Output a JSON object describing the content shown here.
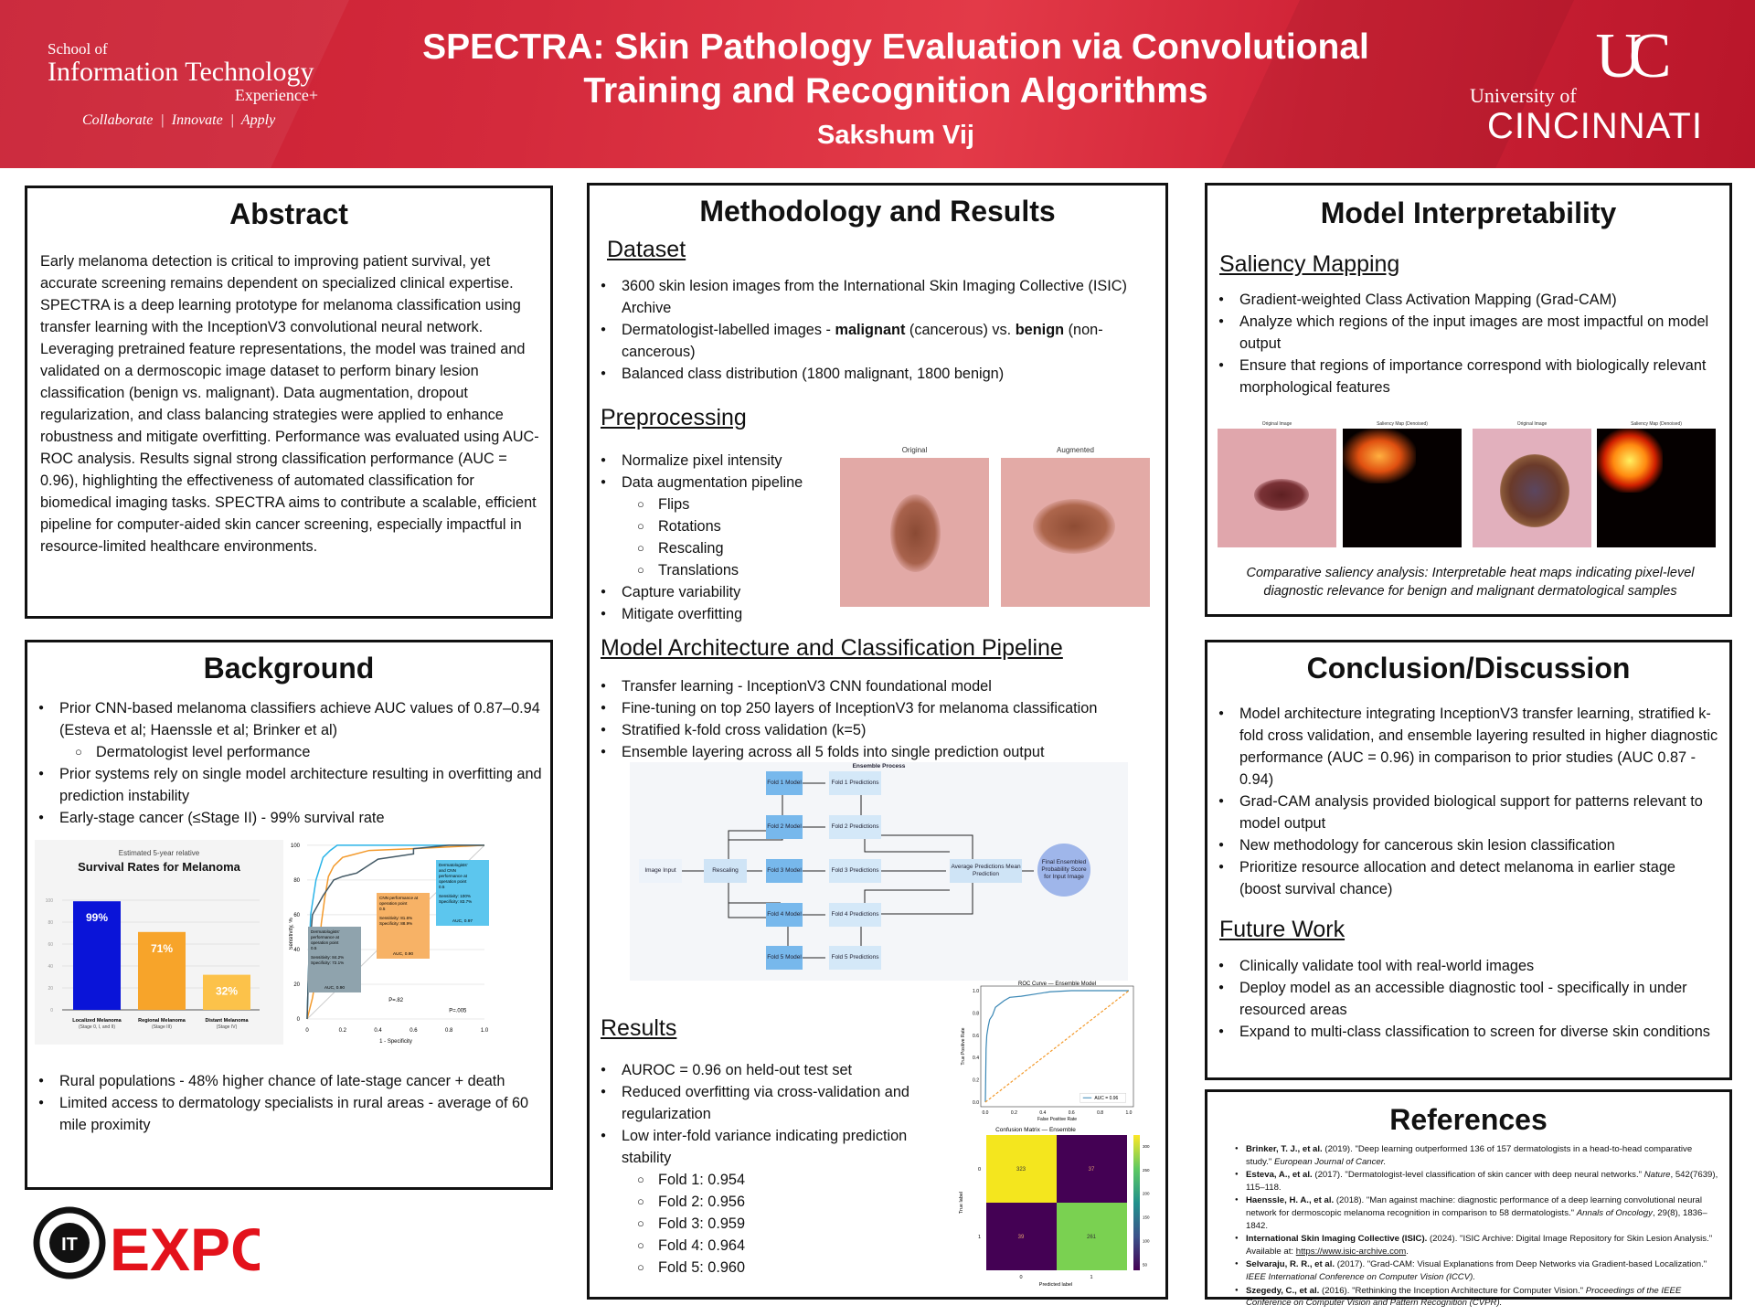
{
  "header": {
    "school_line1": "School of",
    "school_line2": "Information Technology",
    "school_line3": "Experience+",
    "tagline": [
      "Collaborate",
      "Innovate",
      "Apply"
    ],
    "title": "SPECTRA: Skin Pathology Evaluation via Convolutional Training and Recognition Algorithms",
    "author": "Sakshum Vij",
    "university_line1": "University of",
    "university_line2": "CINCINNATI",
    "brand_color": "#c81e32"
  },
  "abstract": {
    "heading": "Abstract",
    "text": "Early melanoma detection is critical to improving patient survival, yet accurate screening remains dependent on specialized clinical expertise. SPECTRA is a deep learning prototype for melanoma classification using transfer learning with the InceptionV3 convolutional neural network. Leveraging pretrained feature representations, the model was trained and validated on a dermoscopic image dataset to perform binary lesion classification (benign vs. malignant). Data augmentation, dropout regularization, and class balancing strategies were applied to enhance robustness and mitigate overfitting. Performance was evaluated using AUC-ROC analysis. Results signal strong classification performance (AUC = 0.96), highlighting the effectiveness of automated classification for biomedical imaging tasks. SPECTRA aims to contribute a scalable, efficient pipeline for computer-aided skin cancer screening, especially impactful in resource-limited healthcare environments."
  },
  "background": {
    "heading": "Background",
    "items": [
      {
        "text": "Prior CNN-based melanoma classifiers achieve AUC values of 0.87–0.94 (Esteva et al; Haenssle et al; Brinker et al)"
      },
      {
        "text": "Dermatologist level performance",
        "level": 2
      },
      {
        "text": "Prior systems rely on single model architecture resulting in overfitting and prediction instability"
      },
      {
        "text": "Early-stage cancer (≤Stage II) - 99% survival rate"
      }
    ],
    "items2": [
      {
        "text": "Rural populations - 48% higher chance of late-stage cancer + death"
      },
      {
        "text": "Limited access to dermatology specialists in rural areas - average of 60 mile proximity"
      }
    ],
    "survival_chart": {
      "subtitle": "Estimated 5-year relative",
      "title": "Survival Rates for Melanoma",
      "yticks": [
        "0",
        "20",
        "40",
        "60",
        "80",
        "100"
      ],
      "bars": [
        {
          "label": "Localized Melanoma",
          "sub": "(Stage 0, I, and II)",
          "value": 99,
          "value_label": "99%",
          "color": "#0a14d8"
        },
        {
          "label": "Regional Melanoma",
          "sub": "(Stage III)",
          "value": 71,
          "value_label": "71%",
          "color": "#f7a42a"
        },
        {
          "label": "Distant Melanoma",
          "sub": "(Stage IV)",
          "value": 32,
          "value_label": "32%",
          "color": "#fcc24a"
        }
      ]
    },
    "roc_chart": {
      "ylabel": "Sensitivity, %",
      "xlabel": "1 - Specificity",
      "xticks": [
        "0",
        "0.2",
        "0.4",
        "0.6",
        "0.8",
        "1.0"
      ],
      "yticks": [
        "0",
        "20",
        "40",
        "60",
        "80",
        "100"
      ],
      "series": [
        {
          "color": "#2ab4e8",
          "points": [
            [
              0,
              0
            ],
            [
              0.01,
              35
            ],
            [
              0.02,
              60
            ],
            [
              0.05,
              80
            ],
            [
              0.09,
              93
            ],
            [
              0.13,
              97
            ],
            [
              0.17,
              100
            ],
            [
              1,
              100
            ]
          ]
        },
        {
          "color": "#f39a2c",
          "points": [
            [
              0,
              0
            ],
            [
              0.03,
              12
            ],
            [
              0.06,
              30
            ],
            [
              0.08,
              55
            ],
            [
              0.1,
              70
            ],
            [
              0.12,
              82
            ],
            [
              0.15,
              88
            ],
            [
              0.2,
              93
            ],
            [
              0.35,
              97
            ],
            [
              0.6,
              98
            ],
            [
              1,
              100
            ]
          ]
        },
        {
          "color": "#445a66",
          "points": [
            [
              0,
              0
            ],
            [
              0.01,
              35
            ],
            [
              0.03,
              60
            ],
            [
              0.09,
              71
            ],
            [
              0.15,
              80
            ],
            [
              0.2,
              82
            ],
            [
              0.28,
              84
            ],
            [
              0.4,
              92
            ],
            [
              0.6,
              95
            ],
            [
              0.6,
              98
            ],
            [
              0.8,
              100
            ],
            [
              1,
              100
            ]
          ]
        }
      ],
      "boxes": [
        {
          "title": "Dermatologists' performance at operation point 0.5",
          "sens": "Sensitivity: 84.2%",
          "spec": "Specificity: 72.1%",
          "auc": "AUC, 0.90",
          "color": "#8fa3ad"
        },
        {
          "title": "CNN performance at operation point 0.5",
          "sens": "Sensitivity: 81.6%",
          "spec": "Specificity: 88.9%",
          "auc": "AUC, 0.90",
          "color": "#f7b266"
        },
        {
          "title": "Dermatologists' and CNN performance at operation point 0.5",
          "sens": "Sensitivity: 100%",
          "spec": "Specificity: 83.7%",
          "auc": "AUC, 0.97",
          "color": "#5cc6ee"
        }
      ],
      "p1": "P=.82",
      "p2": "P=.005"
    }
  },
  "methods": {
    "heading": "Methodology and Results",
    "dataset": {
      "heading": "Dataset",
      "items": [
        {
          "text": "3600 skin lesion images from the International Skin Imaging Collective (ISIC) Archive"
        },
        {
          "parts": [
            {
              "t": "Dermatologist-labelled images - "
            },
            {
              "t": "malignant",
              "b": true
            },
            {
              "t": " (cancerous) vs. "
            },
            {
              "t": "benign",
              "b": true
            },
            {
              "t": " (non-cancerous)"
            }
          ]
        },
        {
          "text": "Balanced class distribution (1800 malignant, 1800 benign)"
        }
      ]
    },
    "preprocessing": {
      "heading": "Preprocessing",
      "items": [
        {
          "text": "Normalize pixel intensity"
        },
        {
          "text": "Data augmentation pipeline"
        },
        {
          "text": "Flips",
          "level": 2
        },
        {
          "text": "Rotations",
          "level": 2
        },
        {
          "text": "Rescaling",
          "level": 2
        },
        {
          "text": "Translations",
          "level": 2
        },
        {
          "text": "Capture variability"
        },
        {
          "text": "Mitigate overfitting"
        }
      ],
      "image_labels": [
        "Original",
        "Augmented"
      ]
    },
    "architecture": {
      "heading": "Model Architecture and Classification Pipeline",
      "items": [
        {
          "text": "Transfer learning - InceptionV3 CNN foundational model"
        },
        {
          "text": "Fine-tuning on top 250 layers of InceptionV3 for melanoma classification"
        },
        {
          "text": "Stratified k-fold cross validation (k=5)"
        },
        {
          "text": "Ensemble layering across all 5 folds into single prediction output"
        }
      ],
      "diagram": {
        "title": "Ensemble Process",
        "input": "Image Input",
        "rescale": "Rescaling",
        "models": [
          "Fold 1 Model",
          "Fold 2 Model",
          "Fold 3 Model",
          "Fold 4 Model",
          "Fold 5 Model"
        ],
        "preds": [
          "Fold 1 Predictions",
          "Fold 2 Predictions",
          "Fold 3 Predictions",
          "Fold 4 Predictions",
          "Fold 5 Predictions"
        ],
        "average": "Average Predictions Mean Prediction",
        "final": "Final Ensembled Probability Score for Input Image"
      }
    },
    "results": {
      "heading": "Results",
      "items": [
        {
          "text": "AUROC = 0.96 on held-out test set"
        },
        {
          "text": "Reduced overfitting via cross-validation and regularization"
        },
        {
          "text": "Low inter-fold variance indicating prediction stability"
        },
        {
          "text": "Fold 1: 0.954",
          "level": 2
        },
        {
          "text": "Fold 2: 0.956",
          "level": 2
        },
        {
          "text": "Fold 3: 0.959",
          "level": 2
        },
        {
          "text": "Fold 4: 0.964",
          "level": 2
        },
        {
          "text": "Fold 5: 0.960",
          "level": 2
        }
      ]
    }
  },
  "chart_data": [
    {
      "type": "line",
      "title": "ROC Curve — Ensemble Model",
      "xlabel": "False Positive Rate",
      "ylabel": "True Positive Rate",
      "xlim": [
        0,
        1
      ],
      "ylim": [
        0,
        1
      ],
      "xticks": [
        "0.0",
        "0.2",
        "0.4",
        "0.6",
        "0.8",
        "1.0"
      ],
      "yticks": [
        "0.0",
        "0.2",
        "0.4",
        "0.6",
        "0.8",
        "1.0"
      ],
      "legend": "bottom-right",
      "legend_label": "AUC = 0.96",
      "series": [
        {
          "name": "AUC = 0.96",
          "color": "#3a87b5",
          "x": [
            0,
            0.005,
            0.01,
            0.02,
            0.03,
            0.05,
            0.07,
            0.1,
            0.13,
            0.17,
            0.25,
            0.35,
            0.45,
            0.6,
            1.0
          ],
          "y": [
            0,
            0.48,
            0.6,
            0.68,
            0.74,
            0.78,
            0.85,
            0.88,
            0.91,
            0.94,
            0.95,
            0.97,
            0.99,
            1.0,
            1.0
          ]
        },
        {
          "color": "#f39a2c",
          "dashed": true,
          "x": [
            0,
            1
          ],
          "y": [
            0,
            1
          ]
        }
      ]
    },
    {
      "type": "heatmap",
      "title": "Confusion Matrix — Ensemble",
      "xlabel": "Predicted label",
      "ylabel": "True label",
      "x_categories": [
        "0",
        "1"
      ],
      "y_categories": [
        "0",
        "1"
      ],
      "values": [
        [
          323,
          37
        ],
        [
          39,
          261
        ]
      ],
      "colorbar_ticks": [
        "50",
        "100",
        "150",
        "200",
        "250",
        "300"
      ],
      "colormap": "viridis"
    }
  ],
  "interpret": {
    "heading": "Model Interpretability",
    "saliency_heading": "Saliency Mapping",
    "items": [
      {
        "text": "Gradient-weighted Class Activation Mapping (Grad-CAM)"
      },
      {
        "text": "Analyze which regions of the input images are most impactful on model output"
      },
      {
        "text": "Ensure that regions of importance correspond with biologically relevant morphological features"
      }
    ],
    "image_labels": [
      "Original Image",
      "Saliency Map (Denoised)",
      "Original Image",
      "Saliency Map (Denoised)"
    ],
    "caption": "Comparative saliency analysis: Interpretable heat maps indicating pixel-level diagnostic relevance for benign and malignant dermatological samples"
  },
  "conclusion": {
    "heading": "Conclusion/Discussion",
    "items": [
      {
        "text": "Model architecture integrating InceptionV3 transfer learning, stratified k-fold cross validation, and ensemble layering resulted in higher diagnostic performance (AUC = 0.96) in comparison to prior studies (AUC 0.87 - 0.94)"
      },
      {
        "text": "Grad-CAM analysis provided biological support for patterns relevant to model output"
      },
      {
        "text": "New methodology for cancerous skin lesion classification"
      },
      {
        "text": "Prioritize resource allocation and detect melanoma in earlier stage (boost survival chance)"
      }
    ],
    "future_heading": "Future Work",
    "future_items": [
      {
        "text": "Clinically validate tool with real-world images"
      },
      {
        "text": "Deploy model as an accessible diagnostic tool - specifically in under resourced areas"
      },
      {
        "text": "Expand to multi-class classification to screen for diverse skin conditions"
      }
    ]
  },
  "references": {
    "heading": "References",
    "items": [
      {
        "parts": [
          {
            "t": "Brinker, T. J., et al.",
            "b": true
          },
          {
            "t": " (2019). \"Deep learning outperformed 136 of 157 dermatologists in a head-to-head comparative study.\" "
          },
          {
            "t": "European Journal of Cancer.",
            "i": true
          }
        ]
      },
      {
        "parts": [
          {
            "t": "Esteva, A., et al.",
            "b": true
          },
          {
            "t": " (2017). \"Dermatologist-level classification of skin cancer with deep neural networks.\" "
          },
          {
            "t": "Nature",
            "i": true
          },
          {
            "t": ", 542(7639), 115–118."
          }
        ]
      },
      {
        "parts": [
          {
            "t": "Haenssle, H. A., et al.",
            "b": true
          },
          {
            "t": " (2018). \"Man against machine: diagnostic performance of a deep learning convolutional neural network for dermoscopic melanoma recognition in comparison to 58 dermatologists.\" "
          },
          {
            "t": "Annals of Oncology",
            "i": true
          },
          {
            "t": ", 29(8), 1836–1842."
          }
        ]
      },
      {
        "parts": [
          {
            "t": "International Skin Imaging Collective (ISIC).",
            "b": true
          },
          {
            "t": " (2024). \"ISIC Archive: Digital Image Repository for Skin Lesion Analysis.\" Available at: "
          },
          {
            "t": "https://www.isic-archive.com",
            "u": true
          },
          {
            "t": "."
          }
        ]
      },
      {
        "parts": [
          {
            "t": "Selvaraju, R. R., et al.",
            "b": true
          },
          {
            "t": " (2017). \"Grad-CAM: Visual Explanations from Deep Networks via Gradient-based Localization.\" "
          },
          {
            "t": "IEEE International Conference on Computer Vision (ICCV).",
            "i": true
          }
        ]
      },
      {
        "parts": [
          {
            "t": "Szegedy, C., et al.",
            "b": true
          },
          {
            "t": " (2016). \"Rethinking the Inception Architecture for Computer Vision.\" "
          },
          {
            "t": "Proceedings of the IEEE Conference on Computer Vision and Pattern Recognition (CVPR).",
            "i": true
          }
        ]
      }
    ]
  },
  "expo_logo": {
    "text": "EXPO",
    "badge": "IT",
    "color": "#e3121b"
  }
}
